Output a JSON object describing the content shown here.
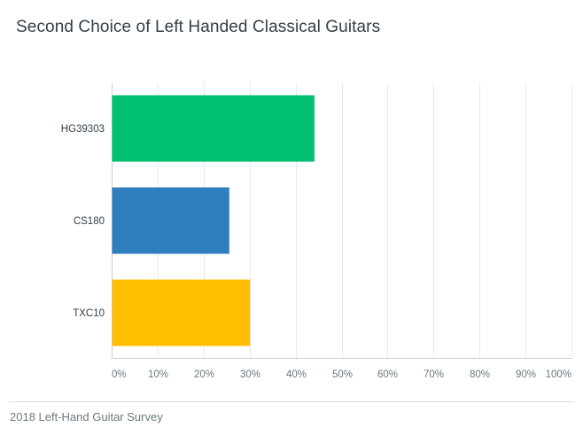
{
  "chart_data": {
    "type": "bar",
    "orientation": "horizontal",
    "title": "Second Choice of Left Handed Classical Guitars",
    "categories": [
      "HG39303",
      "CS180",
      "TXC10"
    ],
    "values": [
      44,
      25.5,
      30
    ],
    "colors": [
      "#00bf6f",
      "#2f7ebe",
      "#ffbf00"
    ],
    "xlim": [
      0,
      100
    ],
    "xticks": [
      "0%",
      "10%",
      "20%",
      "30%",
      "40%",
      "50%",
      "60%",
      "70%",
      "80%",
      "90%",
      "100%"
    ],
    "xlabel": "",
    "ylabel": "",
    "grid": true,
    "legend": "none"
  },
  "footer": {
    "text": "2018 Left-Hand Guitar Survey"
  }
}
